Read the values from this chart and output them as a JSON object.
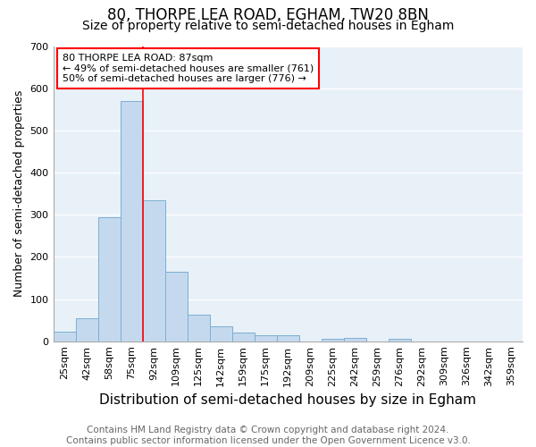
{
  "title": "80, THORPE LEA ROAD, EGHAM, TW20 8BN",
  "subtitle": "Size of property relative to semi-detached houses in Egham",
  "xlabel": "Distribution of semi-detached houses by size in Egham",
  "ylabel": "Number of semi-detached properties",
  "footnote": "Contains HM Land Registry data © Crown copyright and database right 2024.\nContains public sector information licensed under the Open Government Licence v3.0.",
  "bar_labels": [
    "25sqm",
    "42sqm",
    "58sqm",
    "75sqm",
    "92sqm",
    "109sqm",
    "125sqm",
    "142sqm",
    "159sqm",
    "175sqm",
    "192sqm",
    "209sqm",
    "225sqm",
    "242sqm",
    "259sqm",
    "276sqm",
    "292sqm",
    "309sqm",
    "326sqm",
    "342sqm",
    "359sqm"
  ],
  "bar_values": [
    22,
    55,
    295,
    570,
    335,
    165,
    62,
    35,
    20,
    15,
    15,
    0,
    6,
    8,
    0,
    6,
    0,
    0,
    0,
    0,
    0
  ],
  "bar_color": "#c5d9ee",
  "bar_edge_color": "#7aafd4",
  "background_color": "#e8f0f8",
  "grid_color": "#ffffff",
  "annotation_line1": "80 THORPE LEA ROAD: 87sqm",
  "annotation_line2": "← 49% of semi-detached houses are smaller (761)",
  "annotation_line3": "50% of semi-detached houses are larger (776) →",
  "ylim": [
    0,
    700
  ],
  "yticks": [
    0,
    100,
    200,
    300,
    400,
    500,
    600,
    700
  ],
  "title_fontsize": 12,
  "subtitle_fontsize": 10,
  "xlabel_fontsize": 11,
  "ylabel_fontsize": 9,
  "tick_fontsize": 8,
  "footnote_fontsize": 7.5,
  "red_line_index": 4
}
